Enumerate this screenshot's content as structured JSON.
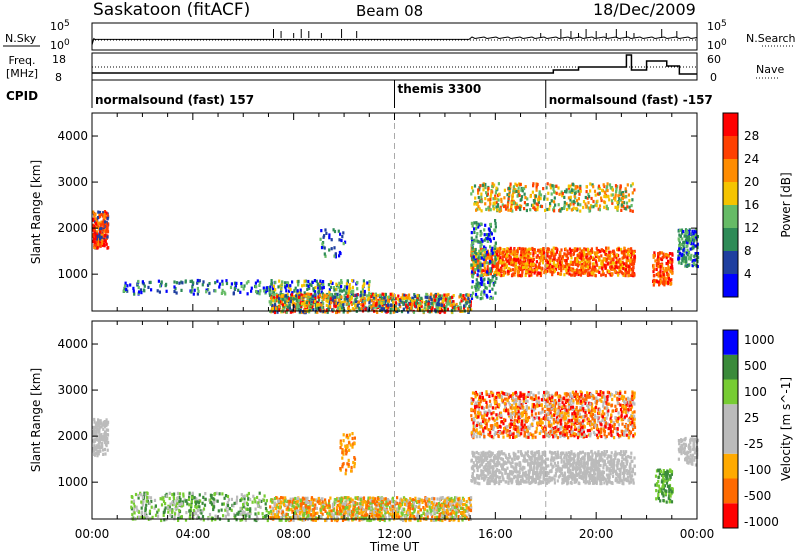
{
  "header": {
    "station": "Saskatoon (fitACF)",
    "beam": "Beam 08",
    "date": "18/Dec/2009"
  },
  "top_panels": {
    "nsky_label": "N.Sky",
    "nsky_ticks": [
      "10^5",
      "10^0"
    ],
    "nsearch_label": "N.Search",
    "freq_label": "Freq.",
    "freq_unit": "[MHz]",
    "freq_ticks": [
      "18",
      "8"
    ],
    "nave_label": "Nave",
    "nave_ticks": [
      "60",
      "0"
    ],
    "cpid_label": "CPID",
    "cpid_segments": [
      {
        "label": "normalsound (fast) 157",
        "start": 0,
        "end": 12
      },
      {
        "label": "themis 3300",
        "start": 12,
        "end": 18
      },
      {
        "label": "normalsound (fast) -157",
        "start": 18,
        "end": 24
      }
    ]
  },
  "colors": {
    "power": [
      "#0000ff",
      "#1f3f9f",
      "#2e8b57",
      "#66bb66",
      "#f5c400",
      "#ff8c00",
      "#ff4000",
      "#ff0000"
    ],
    "velocity": [
      "#ff0000",
      "#ff6a00",
      "#ffaa00",
      "#bbbbbb",
      "#bbbbbb",
      "#77cc33",
      "#3a8a3a",
      "#0000ff"
    ]
  },
  "chart_data": [
    {
      "type": "heatmap",
      "title": "Power",
      "xlabel": "",
      "ylabel": "Slant Range [km]",
      "xlim": [
        0,
        24
      ],
      "ylim": [
        200,
        4500
      ],
      "yticks": [
        1000,
        2000,
        3000,
        4000
      ],
      "colorbar_label": "Power [dB]",
      "colorbar_ticks": [
        "4",
        "8",
        "12",
        "16",
        "20",
        "24",
        "28"
      ],
      "dashed_lines_ut": [
        12,
        18
      ]
    },
    {
      "type": "heatmap",
      "title": "Velocity",
      "xlabel": "Time UT",
      "ylabel": "Slant Range [km]",
      "xlim": [
        0,
        24
      ],
      "ylim": [
        200,
        4500
      ],
      "x_tick_labels": [
        "00:00",
        "04:00",
        "08:00",
        "12:00",
        "16:00",
        "20:00",
        "00:00"
      ],
      "yticks": [
        1000,
        2000,
        3000,
        4000
      ],
      "colorbar_label": "Velocity [m s^-1]",
      "colorbar_ticks": [
        "1000",
        "500",
        "100",
        "25",
        "-25",
        "-100",
        "-500",
        "-1000"
      ],
      "dashed_lines_ut": [
        12,
        18
      ]
    }
  ]
}
